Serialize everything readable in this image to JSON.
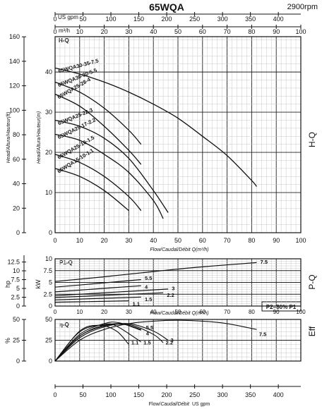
{
  "title": "65WQA",
  "speed": "2900rpm",
  "top_axis": {
    "usgpm_label": "US gpm",
    "usgpm_ticks": [
      "0",
      "50",
      "100",
      "150",
      "200",
      "250",
      "300",
      "350",
      "400"
    ],
    "m3h_label": "m³/h",
    "m3h_ticks": [
      "0",
      "10",
      "20",
      "30",
      "40",
      "50",
      "60",
      "70",
      "80",
      "90",
      "100"
    ]
  },
  "bottom_axis": {
    "usgpm_ticks": [
      "0",
      "50",
      "100",
      "150",
      "200",
      "250",
      "300",
      "350",
      "400"
    ],
    "label_prefix": "Flow/",
    "label_italic": "Caudal/",
    "label_mid": "Débit",
    "label_suffix": "US gpm"
  },
  "hq_panel": {
    "panel_title": "H-Q",
    "side_label": "H-Q",
    "ylabel_left_ft": "Head/Altura/Hauteur(ft)",
    "ylabel_left_m": "Head/Altura/Hauteur(m)",
    "ft_ticks": [
      "0",
      "20",
      "40",
      "60",
      "80",
      "100",
      "120",
      "140",
      "160"
    ],
    "m_ticks": [
      "0",
      "10",
      "20",
      "30",
      "40"
    ],
    "x_ticks": [
      "0",
      "10",
      "20",
      "30",
      "40",
      "50",
      "60",
      "70",
      "80",
      "90",
      "100"
    ],
    "xlabel": "Flow/Caudal/Débit Q(m³/h)"
  },
  "pq_panel": {
    "panel_title": "P1-Q",
    "side_label": "P-Q",
    "hp_label": "hp",
    "kw_label": "kW",
    "hp_ticks": [
      "0",
      "2.5",
      "5",
      "7.5",
      "10",
      "12.5"
    ],
    "kw_ticks": [
      "0",
      "2.5",
      "5",
      "7.5",
      "10"
    ],
    "x_ticks": [
      "0",
      "10",
      "20",
      "30",
      "40",
      "50",
      "60",
      "70",
      "80",
      "90",
      "100"
    ],
    "xlabel": "Flow/Caudal/Débit Q(m³/h)",
    "note": "P2=80% P1"
  },
  "eff_panel": {
    "panel_title": "η-Q",
    "side_label": "Eff",
    "pct_label": "%",
    "pct_ticks": [
      "0",
      "25",
      "50"
    ],
    "eta_ticks": [
      "0",
      "25",
      "50"
    ]
  },
  "chart_data": [
    {
      "type": "line",
      "panel": "H-Q",
      "title": "H-Q",
      "xlabel": "Flow/Caudal/Débit Q(m³/h)",
      "ylabel": "Head/Altura/Hauteur(m)",
      "xlim": [
        0,
        100
      ],
      "ylim": [
        0,
        48.8
      ],
      "series": [
        {
          "name": "65WQA30-35-7.5",
          "x": [
            0,
            10,
            20,
            30,
            40,
            50,
            60,
            70,
            80,
            82
          ],
          "y": [
            41,
            39.5,
            37.5,
            35,
            32,
            28.5,
            24,
            19.2,
            13,
            11.5
          ]
        },
        {
          "name": "65WQA30-30-5.5",
          "x": [
            0,
            10,
            20,
            30,
            35
          ],
          "y": [
            37.5,
            35,
            31,
            25.5,
            22
          ]
        },
        {
          "name": "65WQA25-28-4",
          "x": [
            0,
            10,
            20,
            30,
            35
          ],
          "y": [
            34.5,
            31.5,
            26.5,
            20.5,
            17
          ]
        },
        {
          "name": "65WQA25-22-3",
          "x": [
            0,
            10,
            20,
            30,
            40,
            46
          ],
          "y": [
            28,
            26.5,
            23.5,
            18.5,
            10.5,
            5
          ]
        },
        {
          "name": "65WQA25-17-2.2",
          "x": [
            0,
            10,
            20,
            30,
            40,
            44
          ],
          "y": [
            24.5,
            23,
            19.5,
            15,
            8,
            3.5
          ]
        },
        {
          "name": "65WQA25-10-1.5",
          "x": [
            0,
            10,
            20,
            30,
            35
          ],
          "y": [
            19.5,
            17.5,
            14,
            9,
            5.5
          ]
        },
        {
          "name": "65WQA15-10-1.1",
          "x": [
            0,
            10,
            20,
            30
          ],
          "y": [
            16,
            14,
            10.5,
            5.5
          ]
        }
      ]
    },
    {
      "type": "line",
      "panel": "P1-Q",
      "title": "P1-Q",
      "xlabel": "Flow/Caudal/Débit Q(m³/h)",
      "ylabel": "kW",
      "xlim": [
        0,
        100
      ],
      "ylim": [
        0,
        10
      ],
      "series": [
        {
          "name": "7.5",
          "x": [
            0,
            20,
            40,
            60,
            82
          ],
          "y": [
            5.2,
            6.2,
            7.3,
            8.3,
            9.2
          ]
        },
        {
          "name": "5.5",
          "x": [
            0,
            35
          ],
          "y": [
            4,
            5.6
          ]
        },
        {
          "name": "4",
          "x": [
            0,
            35
          ],
          "y": [
            3,
            4.3
          ]
        },
        {
          "name": "3",
          "x": [
            0,
            46
          ],
          "y": [
            2.2,
            3.6
          ]
        },
        {
          "name": "2.2",
          "x": [
            0,
            44
          ],
          "y": [
            1.8,
            2.8
          ]
        },
        {
          "name": "1.5",
          "x": [
            0,
            35
          ],
          "y": [
            1.3,
            1.9
          ]
        },
        {
          "name": "1.1",
          "x": [
            0,
            30
          ],
          "y": [
            0.8,
            1.1
          ]
        }
      ]
    },
    {
      "type": "line",
      "panel": "η-Q",
      "title": "η-Q",
      "ylabel": "%",
      "xlim": [
        0,
        100
      ],
      "ylim": [
        0,
        50
      ],
      "series": [
        {
          "name": "7.5",
          "x": [
            0,
            10,
            20,
            30,
            40,
            50,
            60,
            70,
            82
          ],
          "y": [
            0,
            25,
            38,
            45,
            48,
            49,
            48,
            45,
            38
          ]
        },
        {
          "name": "5.5",
          "x": [
            0,
            10,
            20,
            28,
            35
          ],
          "y": [
            0,
            30,
            42,
            44,
            38
          ]
        },
        {
          "name": "4",
          "x": [
            0,
            10,
            20,
            26,
            35
          ],
          "y": [
            0,
            32,
            45,
            46,
            37
          ]
        },
        {
          "name": "3",
          "x": [
            0,
            10,
            20,
            30,
            40,
            46
          ],
          "y": [
            0,
            28,
            41,
            45,
            36,
            25
          ]
        },
        {
          "name": "2.2",
          "x": [
            0,
            10,
            20,
            30,
            40,
            44
          ],
          "y": [
            0,
            30,
            43,
            44,
            32,
            22
          ]
        },
        {
          "name": "1.5",
          "x": [
            0,
            10,
            20,
            25,
            35
          ],
          "y": [
            0,
            35,
            44,
            42,
            23
          ]
        },
        {
          "name": "1.1",
          "x": [
            0,
            10,
            18,
            25,
            30
          ],
          "y": [
            0,
            36,
            43,
            36,
            20
          ]
        }
      ]
    }
  ]
}
